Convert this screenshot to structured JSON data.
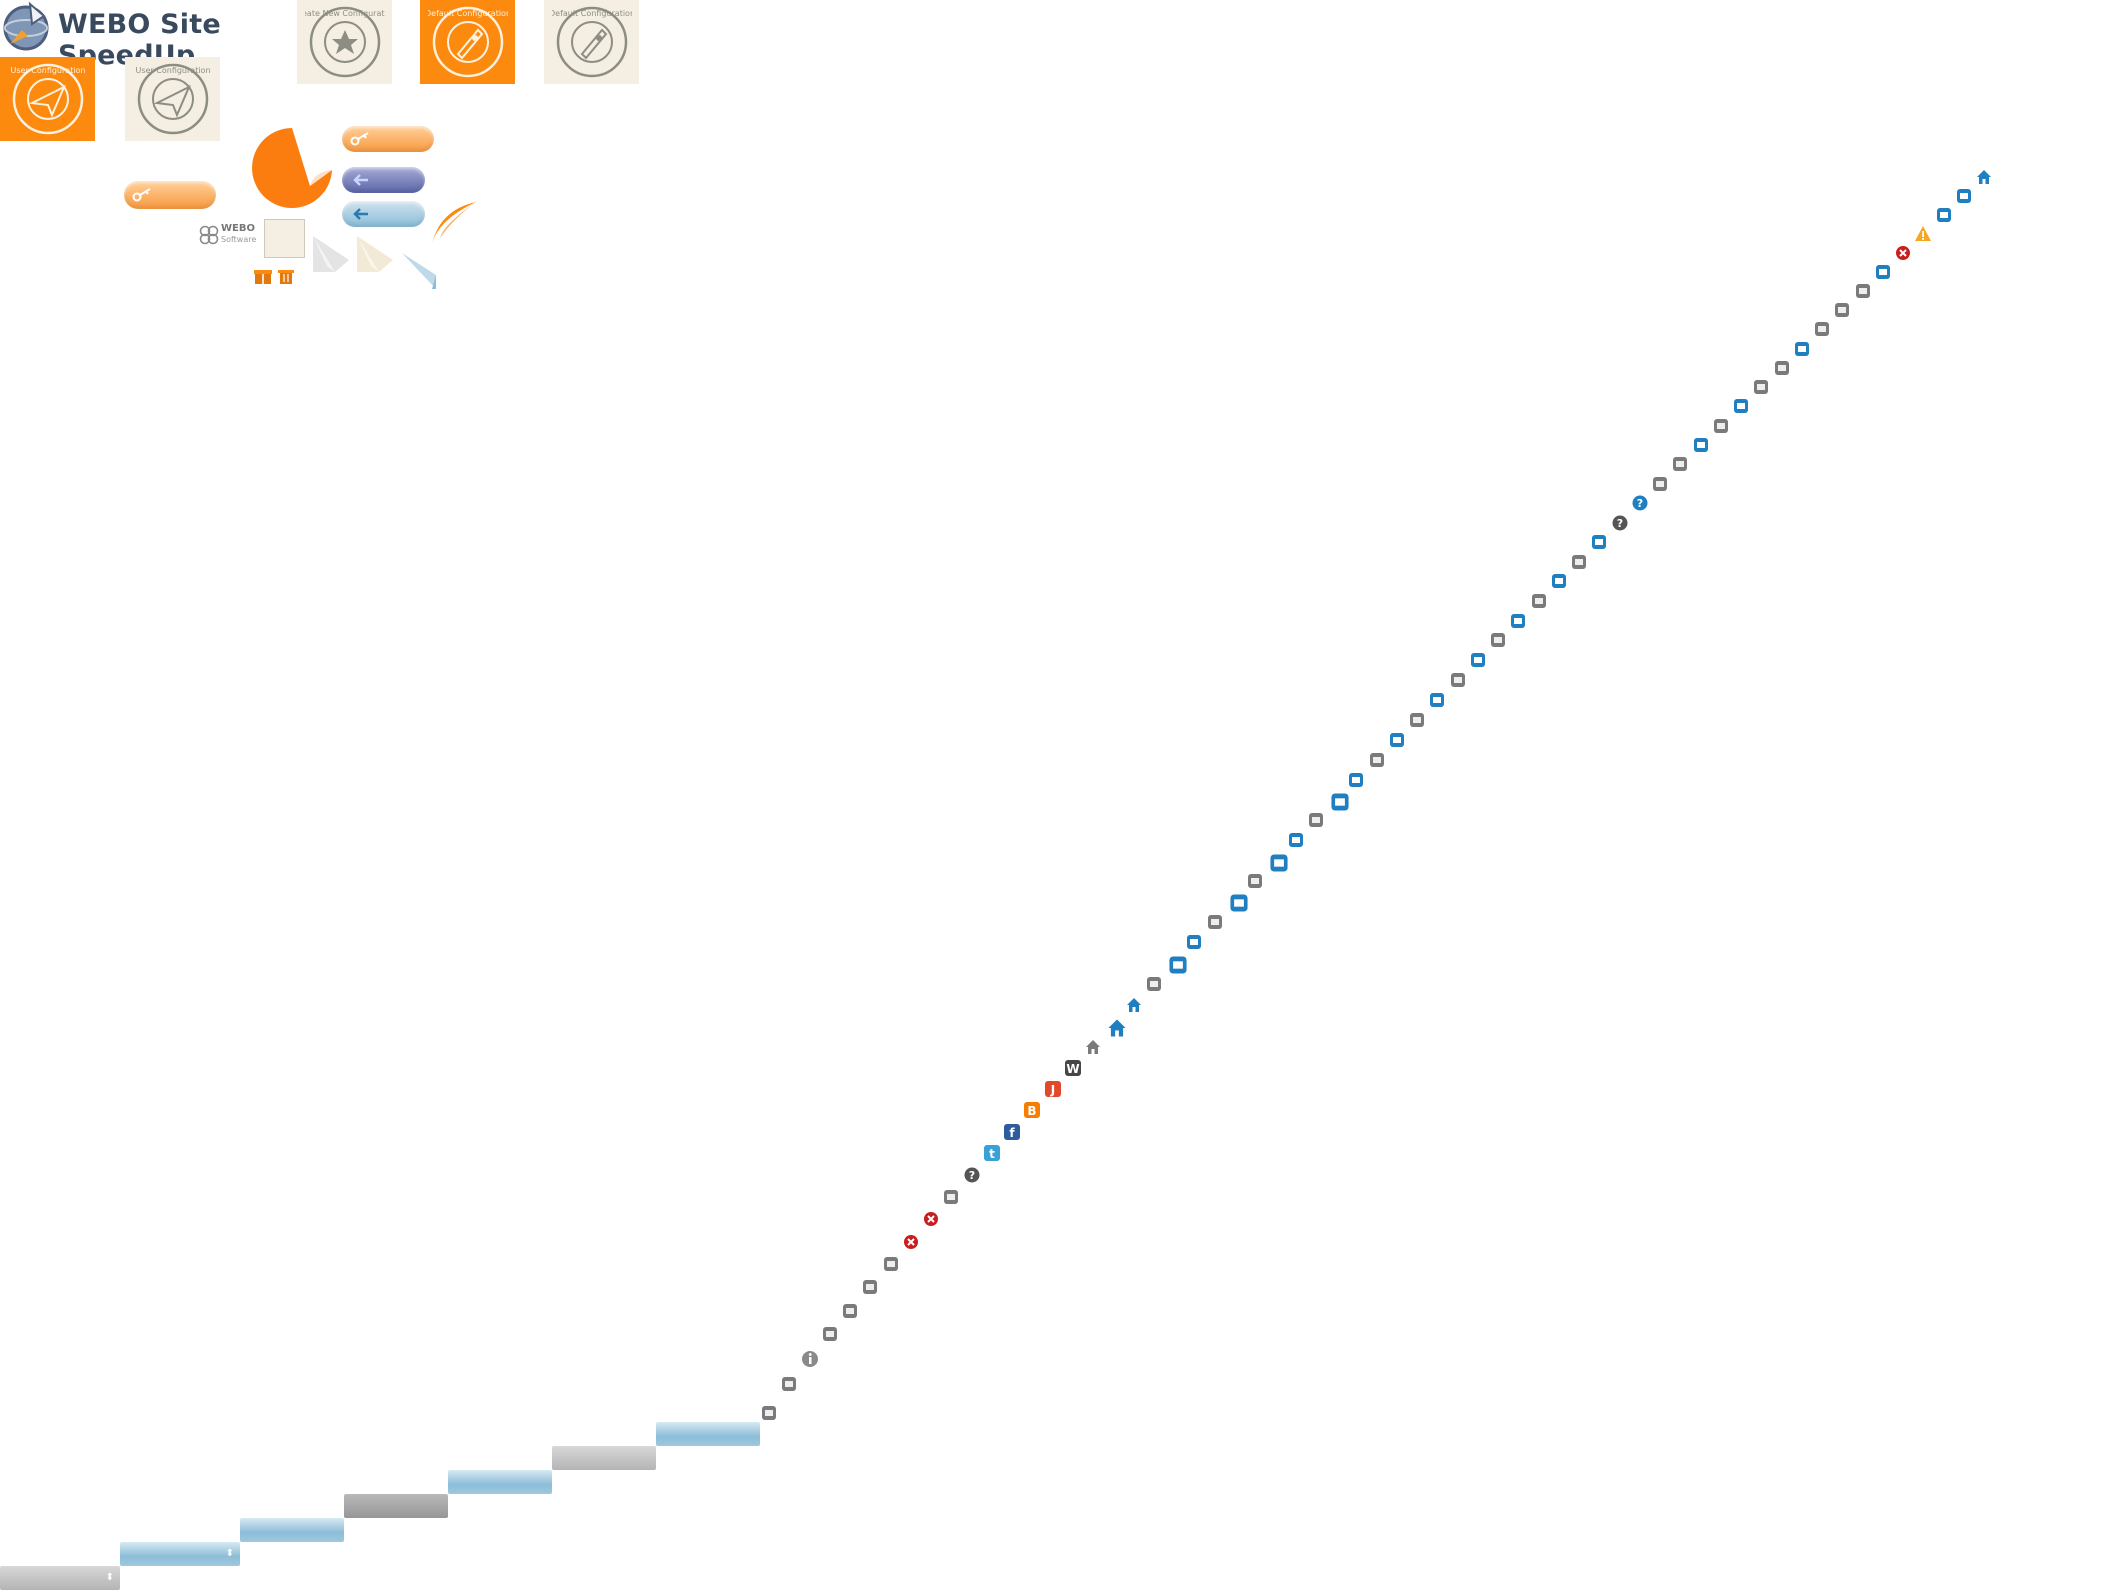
{
  "header": {
    "logo_text": "WEBO Site SpeedUp",
    "logo_icon": "rocket-globe-icon"
  },
  "tiles": [
    {
      "name": "create-new-configuration-tile",
      "variant": "beige",
      "icon": "star-stamp-icon",
      "stamp_text": "Create New Configuration"
    },
    {
      "name": "default-configuration-tile-active",
      "variant": "orange",
      "icon": "rocket-stamp-icon",
      "stamp_text": "Default Configuration"
    },
    {
      "name": "default-configuration-tile",
      "variant": "beige",
      "icon": "rocket-stamp-icon",
      "stamp_text": "Default Configuration"
    },
    {
      "name": "user-configuration-tile-active",
      "variant": "orange",
      "icon": "paper-plane-stamp-icon",
      "stamp_text": "User Configuration"
    },
    {
      "name": "user-configuration-tile",
      "variant": "beige",
      "icon": "paper-plane-stamp-icon",
      "stamp_text": "User Configuration"
    }
  ],
  "webo_software": {
    "line1": "WEBO",
    "line2": "Software"
  },
  "colors": {
    "orange": "#fb8a0f",
    "beige": "#f4efe2",
    "blue_bar": "#8dbdd8",
    "gray_bar": "#969696",
    "navy": "#5c66a8",
    "icon_blue": "#1f7fc0",
    "icon_gray": "#7a7a7a",
    "red": "#c81e1e"
  },
  "sprite_icons": [
    "user-icon",
    "download-icon",
    "info-icon",
    "trash-icon",
    "scissors-icon",
    "crop-icon",
    "basket-icon",
    "close-red-icon",
    "close-red-icon",
    "disabled-circle-icon",
    "help-corner-icon",
    "twitter-icon",
    "facebook-icon",
    "blogger-icon",
    "joomla-icon",
    "wordpress-icon",
    "home-gray-icon",
    "home-blue-big-icon",
    "home-blue-icon",
    "sliders-gray-icon",
    "sliders-blue-big-icon",
    "sliders-blue-icon",
    "server-gray-icon",
    "server-blue-big-icon",
    "key-gray-icon",
    "key-blue-big-icon",
    "key-blue-icon",
    "gear-gray-icon",
    "gear-blue-big-icon",
    "gear-blue-icon",
    "flag-gray-icon",
    "flag-blue-icon",
    "server-gray-icon",
    "server-blue-icon",
    "sliders-gray-icon",
    "sliders-blue-icon",
    "comment-gray-icon",
    "comment-blue-icon",
    "list-gray-icon",
    "list-blue-icon",
    "rss-gray-icon",
    "rss-blue-icon",
    "help-gray-icon",
    "help-blue-icon",
    "stopwatch-gray-icon",
    "stopwatch-gray-icon",
    "stopwatch-blue-icon",
    "clipboard-gray-icon",
    "clipboard-blue-icon",
    "wrench-gray-icon",
    "gear-gray-icon",
    "gear-blue-icon",
    "wrench-gray-icon",
    "monitor-gray-icon",
    "gears-gray-icon",
    "gears-blue-icon",
    "close-red-icon",
    "warning-icon",
    "key-blue-icon",
    "sliders-blue-icon",
    "home-blue-icon"
  ],
  "bars": [
    {
      "name": "select-bar",
      "variant": "lgray"
    },
    {
      "name": "select-bar",
      "variant": "blue"
    },
    {
      "name": "plain-bar",
      "variant": "blue"
    },
    {
      "name": "plain-bar",
      "variant": "gray"
    },
    {
      "name": "plain-bar",
      "variant": "blue"
    },
    {
      "name": "plain-bar",
      "variant": "lgray"
    },
    {
      "name": "plain-bar",
      "variant": "blue"
    }
  ]
}
